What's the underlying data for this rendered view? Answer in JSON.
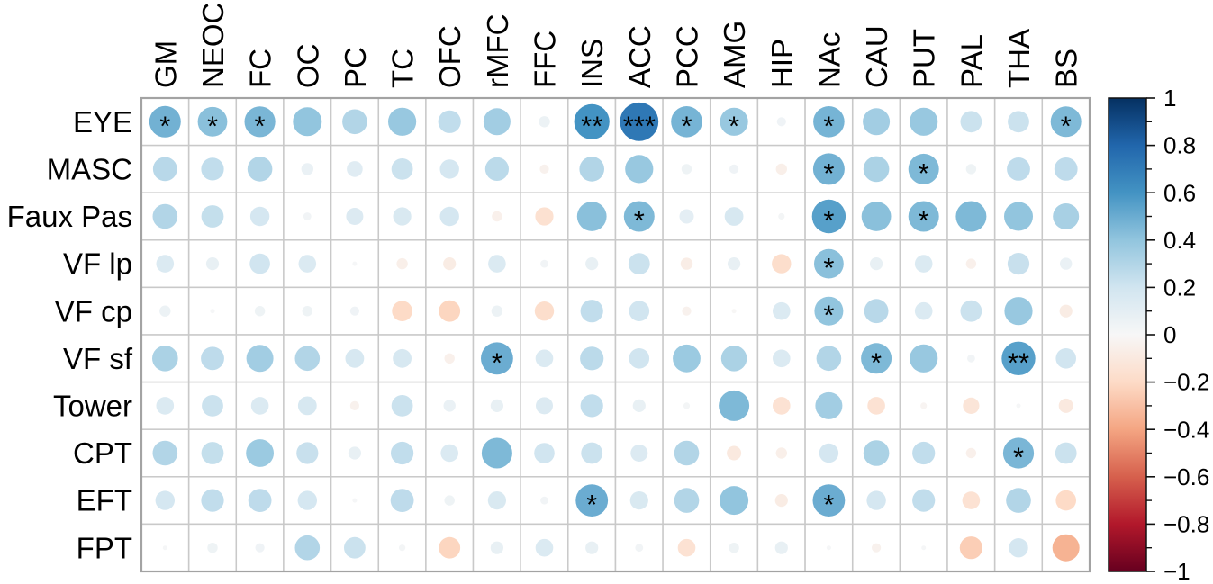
{
  "figure": {
    "background": "#ffffff",
    "grid_line_color": "#c9c9c9",
    "outer_border_color": "#a3a3a3",
    "star_color": "#000000",
    "label_color": "#000000"
  },
  "chart_data": {
    "type": "heatmap",
    "subtype": "correlation-bubble-matrix",
    "title": "",
    "xlabel": "",
    "ylabel": "",
    "legend_position": "right",
    "grid": true,
    "columns": [
      "GM",
      "NEOC",
      "FC",
      "OC",
      "PC",
      "TC",
      "OFC",
      "rMFC",
      "FFC",
      "INS",
      "ACC",
      "PCC",
      "AMG",
      "HIP",
      "NAc",
      "CAU",
      "PUT",
      "PAL",
      "THA",
      "BS"
    ],
    "rows": [
      "EYE",
      "MASC",
      "Faux Pas",
      "VF lp",
      "VF cp",
      "VF sf",
      "Tower",
      "CPT",
      "EFT",
      "FPT"
    ],
    "values": [
      [
        0.48,
        0.42,
        0.46,
        0.4,
        0.3,
        0.38,
        0.25,
        0.35,
        0.06,
        0.6,
        0.72,
        0.47,
        0.38,
        0.04,
        0.47,
        0.35,
        0.38,
        0.22,
        0.22,
        0.45
      ],
      [
        0.28,
        0.25,
        0.3,
        0.07,
        0.12,
        0.22,
        0.18,
        0.27,
        -0.04,
        0.3,
        0.38,
        0.05,
        0.04,
        -0.06,
        0.48,
        0.32,
        0.45,
        0.05,
        0.26,
        0.26
      ],
      [
        0.3,
        0.24,
        0.18,
        0.03,
        0.14,
        0.16,
        0.18,
        -0.05,
        -0.16,
        0.42,
        0.45,
        0.1,
        0.17,
        0.02,
        0.55,
        0.42,
        0.45,
        0.45,
        0.4,
        0.33
      ],
      [
        0.15,
        0.08,
        0.2,
        0.15,
        0.01,
        -0.06,
        -0.08,
        0.15,
        0.03,
        0.08,
        0.22,
        -0.07,
        0.08,
        -0.18,
        0.42,
        0.08,
        0.15,
        -0.05,
        0.23,
        0.07
      ],
      [
        0.06,
        0.01,
        0.05,
        0.05,
        0.04,
        -0.2,
        -0.22,
        0.06,
        -0.18,
        0.25,
        0.2,
        -0.04,
        -0.01,
        0.15,
        0.4,
        0.28,
        0.15,
        0.22,
        0.38,
        -0.08
      ],
      [
        0.32,
        0.26,
        0.35,
        0.3,
        0.17,
        0.17,
        -0.05,
        0.5,
        0.15,
        0.27,
        0.2,
        0.37,
        0.32,
        0.15,
        0.3,
        0.45,
        0.38,
        0.03,
        0.55,
        0.2
      ],
      [
        0.15,
        0.22,
        0.15,
        0.17,
        -0.04,
        0.22,
        0.07,
        0.08,
        0.14,
        0.25,
        0.08,
        0.02,
        0.45,
        -0.15,
        0.35,
        -0.15,
        -0.02,
        -0.13,
        0.01,
        -0.1
      ],
      [
        0.3,
        0.24,
        0.37,
        0.23,
        0.08,
        0.25,
        0.15,
        0.45,
        0.2,
        0.22,
        0.14,
        0.3,
        -0.1,
        -0.06,
        0.18,
        0.32,
        0.25,
        -0.05,
        0.46,
        0.22
      ],
      [
        0.18,
        0.25,
        0.26,
        0.18,
        0.01,
        0.26,
        0.05,
        0.16,
        0.03,
        0.5,
        0.16,
        0.3,
        0.4,
        -0.08,
        0.5,
        0.18,
        0.25,
        -0.15,
        0.3,
        -0.2
      ],
      [
        0.01,
        0.05,
        0.04,
        0.3,
        0.22,
        0.02,
        -0.22,
        0.08,
        0.15,
        0.08,
        0.03,
        -0.15,
        0.05,
        0.08,
        0.01,
        -0.04,
        0.01,
        -0.25,
        0.18,
        -0.35
      ]
    ],
    "significance": [
      [
        "*",
        "*",
        "*",
        "",
        "",
        "",
        "",
        "",
        "",
        "**",
        "***",
        "*",
        "*",
        "",
        "*",
        "",
        "",
        "",
        "",
        "*"
      ],
      [
        "",
        "",
        "",
        "",
        "",
        "",
        "",
        "",
        "",
        "",
        "",
        "",
        "",
        "",
        "*",
        "",
        "*",
        "",
        "",
        ""
      ],
      [
        "",
        "",
        "",
        "",
        "",
        "",
        "",
        "",
        "",
        "",
        "*",
        "",
        "",
        "",
        "*",
        "",
        "*",
        "",
        "",
        ""
      ],
      [
        "",
        "",
        "",
        "",
        "",
        "",
        "",
        "",
        "",
        "",
        "",
        "",
        "",
        "",
        "*",
        "",
        "",
        "",
        "",
        ""
      ],
      [
        "",
        "",
        "",
        "",
        "",
        "",
        "",
        "",
        "",
        "",
        "",
        "",
        "",
        "",
        "*",
        "",
        "",
        "",
        "",
        ""
      ],
      [
        "",
        "",
        "",
        "",
        "",
        "",
        "",
        "*",
        "",
        "",
        "",
        "",
        "",
        "",
        "",
        "*",
        "",
        "",
        "**",
        ""
      ],
      [
        "",
        "",
        "",
        "",
        "",
        "",
        "",
        "",
        "",
        "",
        "",
        "",
        "",
        "",
        "",
        "",
        "",
        "",
        "",
        ""
      ],
      [
        "",
        "",
        "",
        "",
        "",
        "",
        "",
        "",
        "",
        "",
        "",
        "",
        "",
        "",
        "",
        "",
        "",
        "",
        "*",
        ""
      ],
      [
        "",
        "",
        "",
        "",
        "",
        "",
        "",
        "",
        "",
        "*",
        "",
        "",
        "",
        "",
        "*",
        "",
        "",
        "",
        "",
        ""
      ],
      [
        "",
        "",
        "",
        "",
        "",
        "",
        "",
        "",
        "",
        "",
        "",
        "",
        "",
        "",
        "",
        "",
        "",
        "",
        "",
        ""
      ]
    ],
    "colorbar": {
      "range": [
        -1,
        1
      ],
      "major_tick_labels": [
        "1",
        "0.8",
        "0.6",
        "0.4",
        "0.2",
        "0",
        "−0.2",
        "−0.4",
        "−0.6",
        "−0.8",
        "−1"
      ],
      "major_tick_values": [
        1,
        0.8,
        0.6,
        0.4,
        0.2,
        0,
        -0.2,
        -0.4,
        -0.6,
        -0.8,
        -1
      ],
      "minor_tick_values": [
        0.9,
        0.7,
        0.5,
        0.3,
        0.1,
        -0.1,
        -0.3,
        -0.5,
        -0.7,
        -0.9
      ],
      "gradient_stops": [
        {
          "v": 1.0,
          "c": "#053061"
        },
        {
          "v": 0.8,
          "c": "#2166ac"
        },
        {
          "v": 0.6,
          "c": "#4393c3"
        },
        {
          "v": 0.4,
          "c": "#92c5de"
        },
        {
          "v": 0.2,
          "c": "#d1e5f0"
        },
        {
          "v": 0.0,
          "c": "#f7f7f7"
        },
        {
          "v": -0.2,
          "c": "#fddbc7"
        },
        {
          "v": -0.4,
          "c": "#f4a582"
        },
        {
          "v": -0.6,
          "c": "#d6604d"
        },
        {
          "v": -0.8,
          "c": "#b2182b"
        },
        {
          "v": -1.0,
          "c": "#67001f"
        }
      ]
    }
  }
}
